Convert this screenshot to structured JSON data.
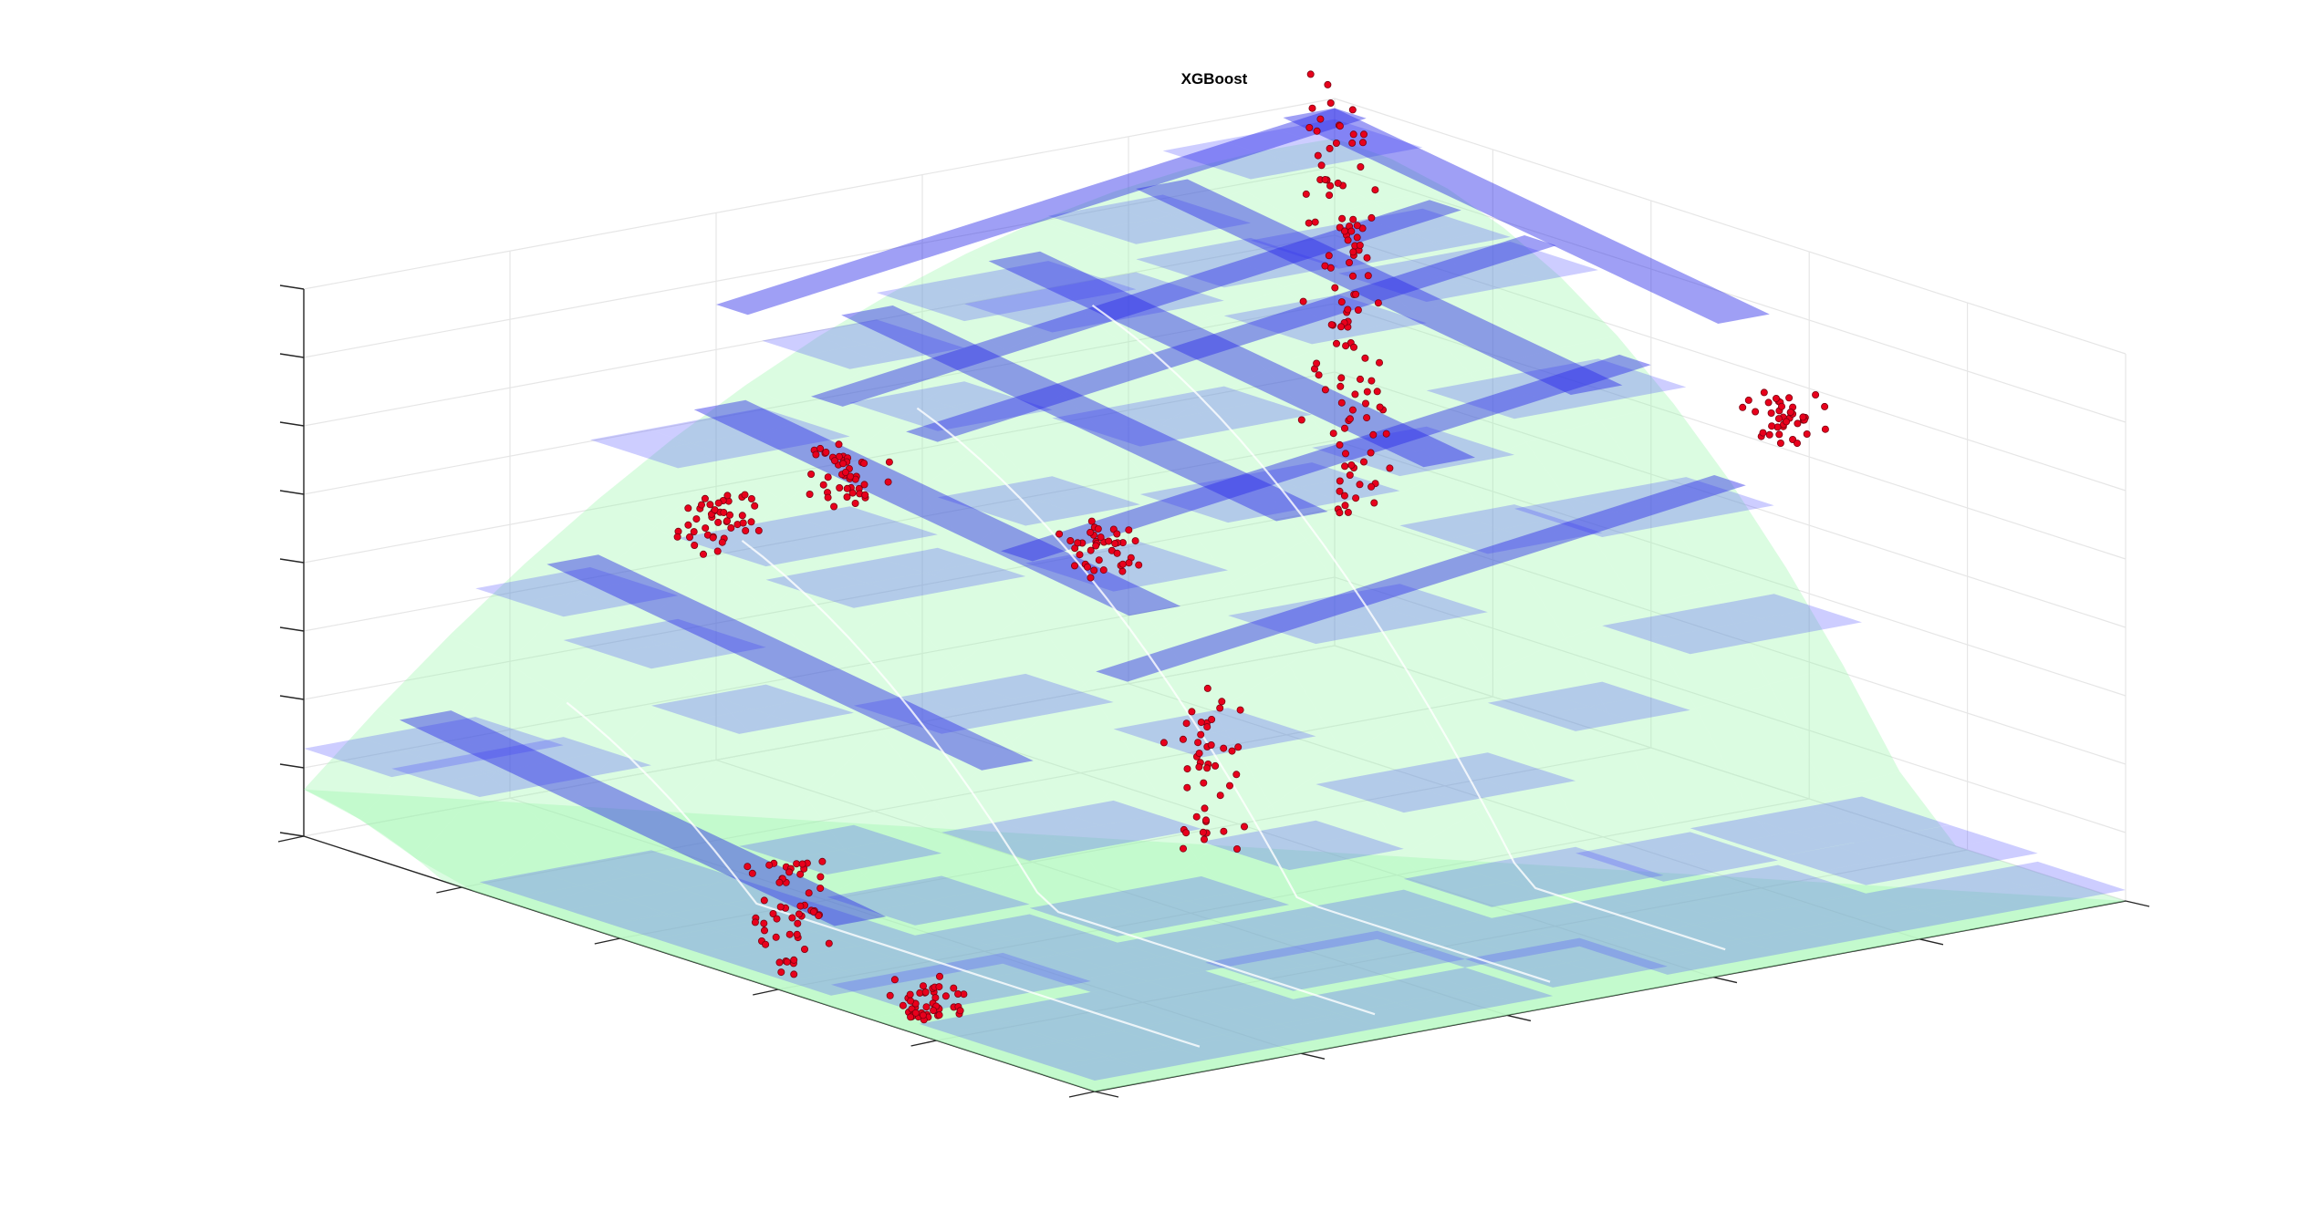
{
  "figure": {
    "title": "XGBoost"
  },
  "chart_data": {
    "type": "surface3d",
    "title": "XGBoost",
    "xlabel": "",
    "ylabel": "",
    "zlabel": "",
    "grid": true,
    "tick_labels_visible": false,
    "colors": {
      "model_surface": "#4b4bff",
      "reference_surface": "#99f5a8",
      "points": "#e8001c",
      "grid": "#e6e6e6",
      "axes": "#262626"
    },
    "surfaces": [
      {
        "name": "",
        "kind": "smooth-reference",
        "color": "#99f5a8"
      },
      {
        "name": "",
        "kind": "model-prediction",
        "color": "#4b4bff"
      }
    ],
    "point_clusters": [
      {
        "u": 0.2,
        "v": 0.75,
        "z": 0.58,
        "n": 45,
        "spread_z": 0.05
      },
      {
        "u": 0.1,
        "v": 0.55,
        "z": 0.55,
        "n": 45,
        "spread_z": 0.05
      },
      {
        "u": 0.22,
        "v": 0.4,
        "z": 0.42,
        "n": 40,
        "spread_z": 0.04
      },
      {
        "u": 0.08,
        "v": 0.05,
        "z": 0.7,
        "n": 120,
        "spread_z": 0.4
      },
      {
        "u": 0.7,
        "v": 0.1,
        "z": 0.78,
        "n": 40,
        "spread_z": 0.04
      },
      {
        "u": 0.55,
        "v": 0.55,
        "z": 0.23,
        "n": 45,
        "spread_z": 0.15
      },
      {
        "u": 0.55,
        "v": 0.95,
        "z": 0.1,
        "n": 55,
        "spread_z": 0.1
      },
      {
        "u": 0.72,
        "v": 0.95,
        "z": 0.01,
        "n": 50,
        "spread_z": 0.04
      }
    ]
  }
}
